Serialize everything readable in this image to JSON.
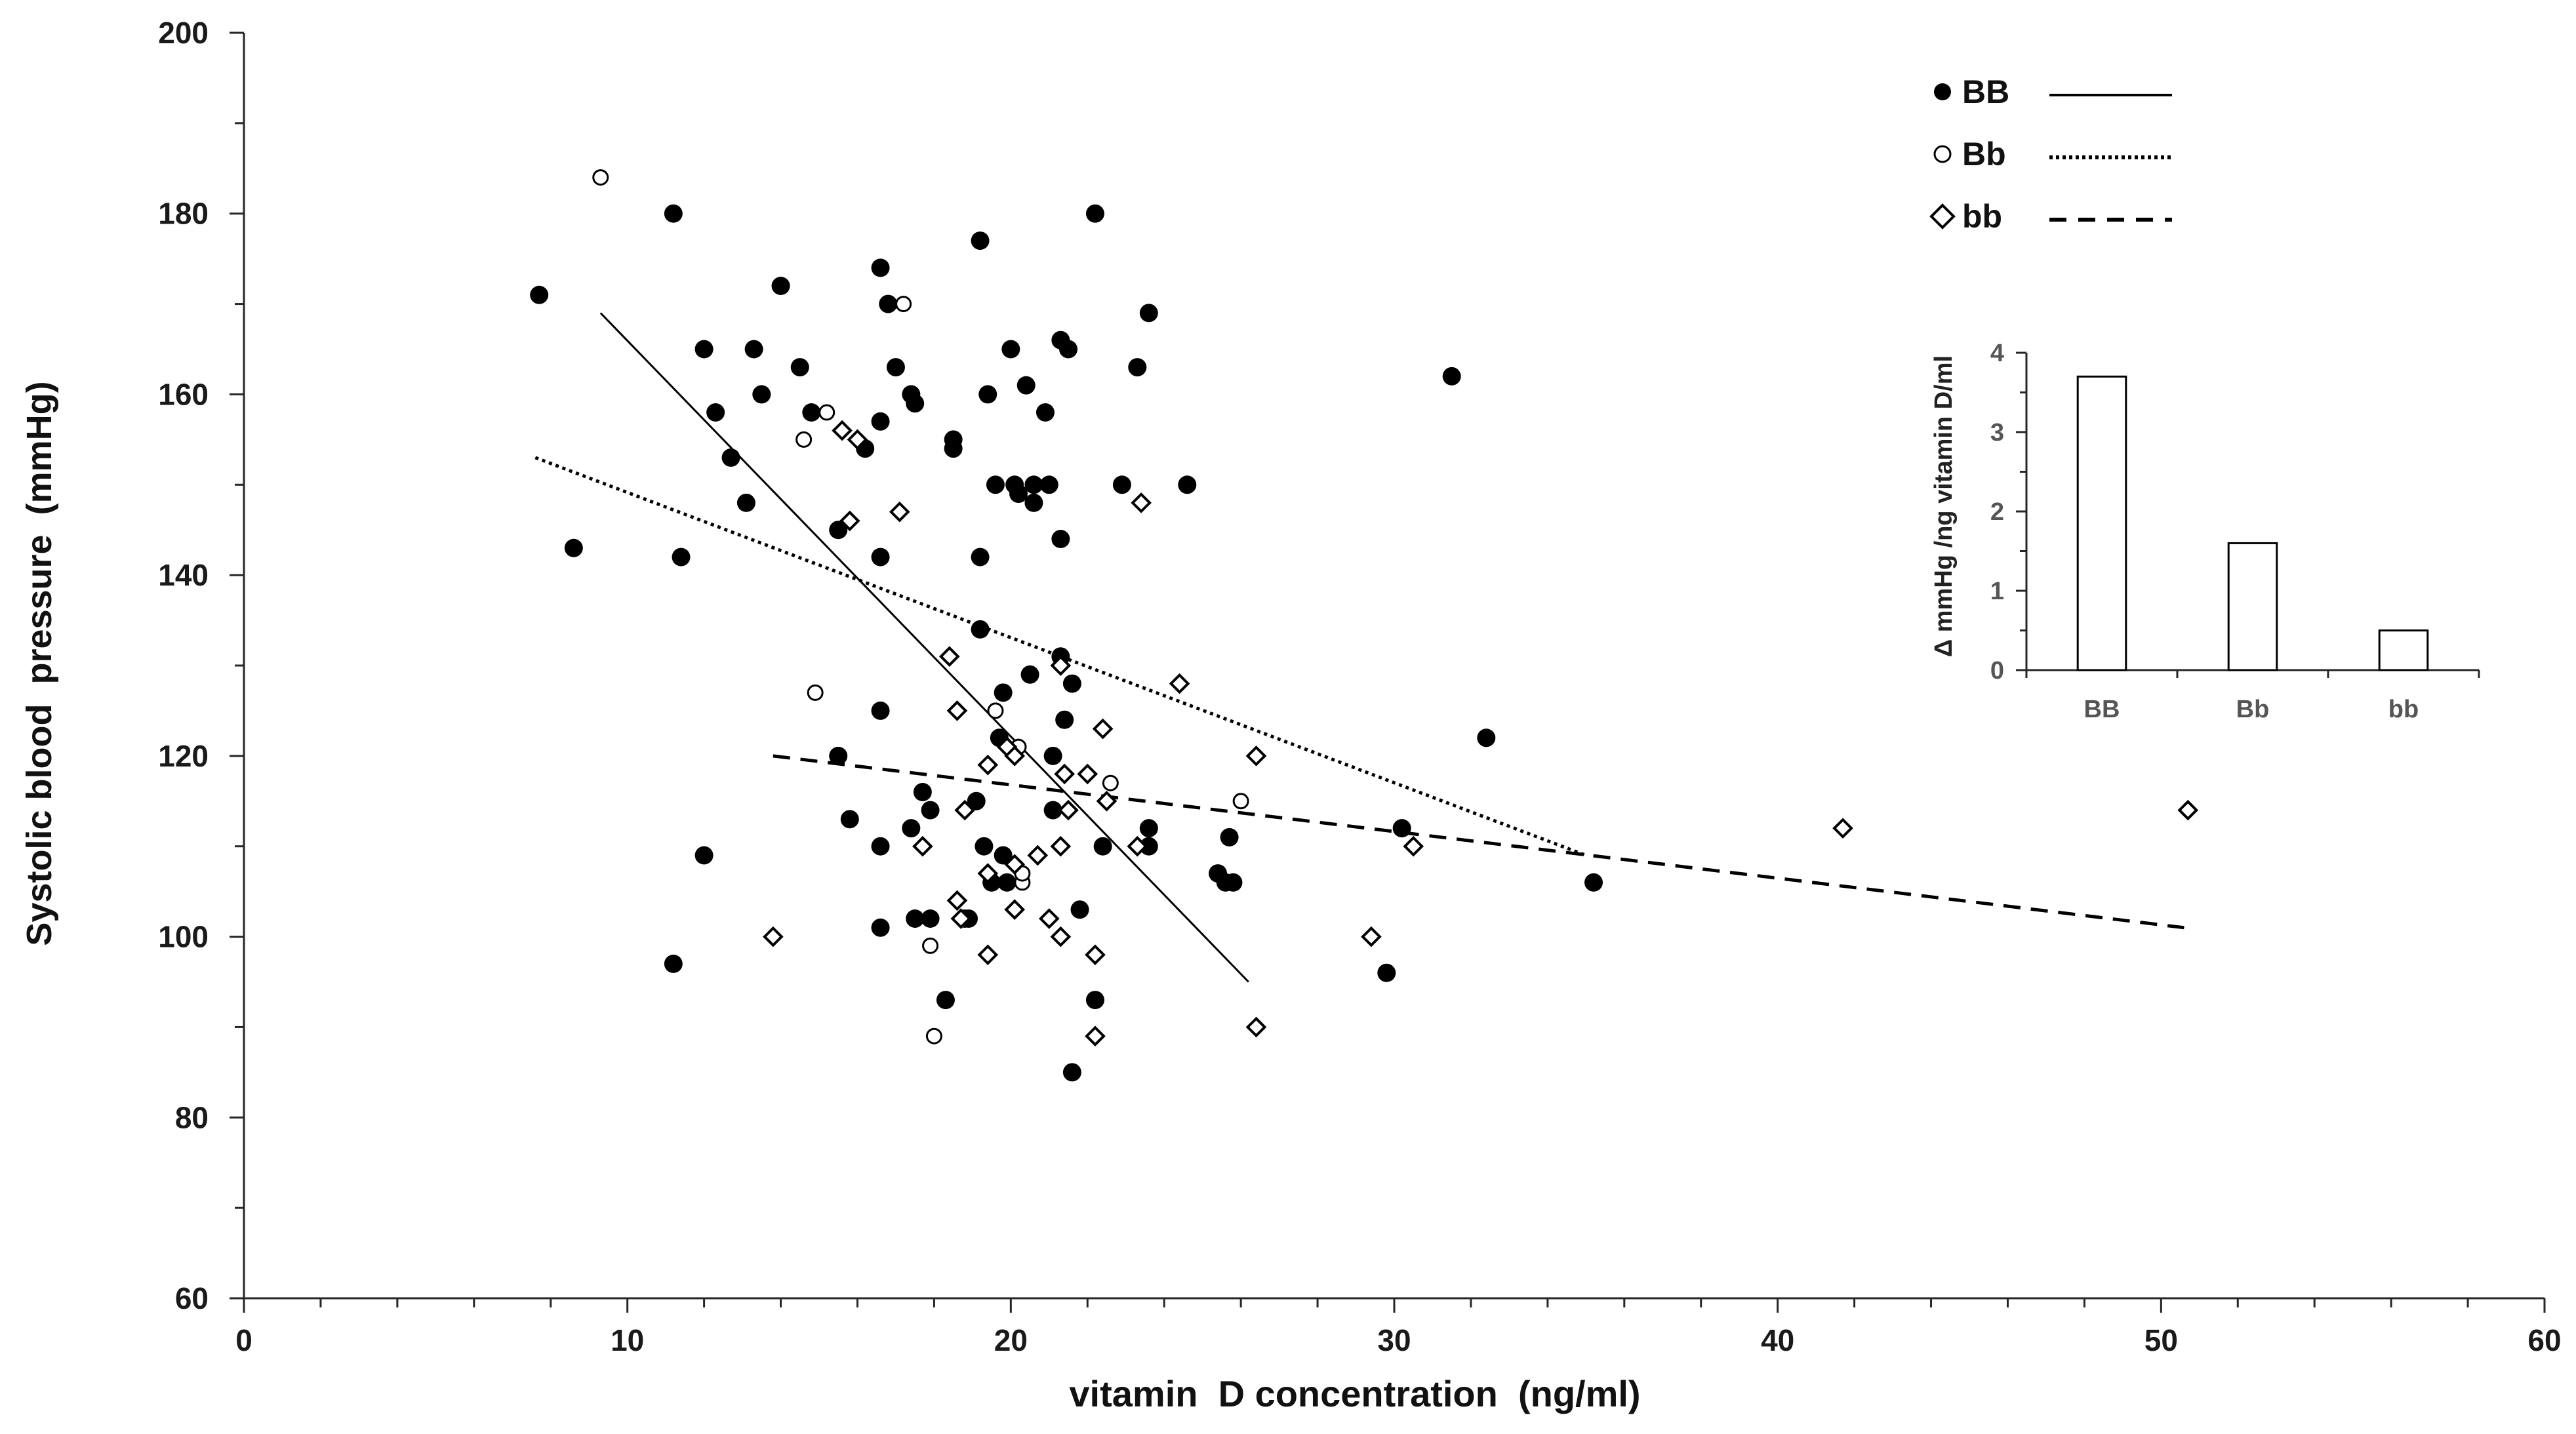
{
  "chart_data": [
    {
      "type": "scatter",
      "title": "",
      "xlabel": "vitamin  D concentration  (ng/ml)",
      "ylabel": "Systolic blood  pressure  (mmHg)",
      "xlim": [
        0,
        60
      ],
      "ylim": [
        60,
        200
      ],
      "x_ticks": [
        "0",
        "10",
        "20",
        "30",
        "40",
        "50",
        "60"
      ],
      "y_ticks": [
        "60",
        "80",
        "100",
        "120",
        "140",
        "160",
        "180",
        "200"
      ],
      "legend_position": "top-right",
      "series": [
        {
          "name": "BB",
          "marker": "filled-circle",
          "line_style": "solid",
          "points": [
            [
              7.7,
              171
            ],
            [
              8.6,
              143
            ],
            [
              11.2,
              180
            ],
            [
              11.4,
              142
            ],
            [
              11.2,
              97
            ],
            [
              12.0,
              109
            ],
            [
              12.0,
              165
            ],
            [
              12.3,
              158
            ],
            [
              12.7,
              153
            ],
            [
              13.1,
              148
            ],
            [
              13.3,
              165
            ],
            [
              13.5,
              160
            ],
            [
              14.0,
              172
            ],
            [
              14.5,
              163
            ],
            [
              14.8,
              158
            ],
            [
              16.2,
              154
            ],
            [
              15.5,
              145
            ],
            [
              15.5,
              120
            ],
            [
              15.8,
              113
            ],
            [
              16.6,
              174
            ],
            [
              16.8,
              170
            ],
            [
              17.0,
              163
            ],
            [
              16.6,
              157
            ],
            [
              16.6,
              142
            ],
            [
              16.6,
              125
            ],
            [
              16.6,
              110
            ],
            [
              16.6,
              101
            ],
            [
              17.4,
              160
            ],
            [
              17.5,
              159
            ],
            [
              17.4,
              112
            ],
            [
              17.5,
              102
            ],
            [
              17.7,
              116
            ],
            [
              17.9,
              114
            ],
            [
              17.9,
              102
            ],
            [
              18.3,
              93
            ],
            [
              18.5,
              154
            ],
            [
              18.5,
              155
            ],
            [
              18.8,
              102
            ],
            [
              18.9,
              102
            ],
            [
              19.1,
              115
            ],
            [
              19.2,
              177
            ],
            [
              19.2,
              142
            ],
            [
              19.2,
              134
            ],
            [
              19.3,
              110
            ],
            [
              19.4,
              160
            ],
            [
              19.5,
              106
            ],
            [
              19.6,
              150
            ],
            [
              19.7,
              122
            ],
            [
              19.8,
              127
            ],
            [
              19.8,
              109
            ],
            [
              19.9,
              106
            ],
            [
              20.0,
              165
            ],
            [
              20.1,
              150
            ],
            [
              20.2,
              149
            ],
            [
              20.4,
              161
            ],
            [
              20.5,
              129
            ],
            [
              20.6,
              150
            ],
            [
              20.6,
              148
            ],
            [
              20.9,
              158
            ],
            [
              21.0,
              150
            ],
            [
              21.1,
              120
            ],
            [
              21.1,
              114
            ],
            [
              21.3,
              166
            ],
            [
              21.3,
              131
            ],
            [
              21.3,
              144
            ],
            [
              21.4,
              124
            ],
            [
              21.5,
              165
            ],
            [
              21.6,
              128
            ],
            [
              21.6,
              85
            ],
            [
              21.8,
              103
            ],
            [
              22.2,
              180
            ],
            [
              22.2,
              93
            ],
            [
              22.4,
              110
            ],
            [
              22.9,
              150
            ],
            [
              23.3,
              163
            ],
            [
              23.6,
              169
            ],
            [
              23.6,
              112
            ],
            [
              23.6,
              110
            ],
            [
              24.6,
              150
            ],
            [
              25.4,
              107
            ],
            [
              25.6,
              106
            ],
            [
              25.8,
              106
            ],
            [
              25.7,
              111
            ],
            [
              29.8,
              96
            ],
            [
              30.2,
              112
            ],
            [
              31.5,
              162
            ],
            [
              32.4,
              122
            ],
            [
              35.2,
              106
            ]
          ],
          "regression_line": [
            [
              9.3,
              169
            ],
            [
              26.2,
              95
            ]
          ]
        },
        {
          "name": "Bb",
          "marker": "open-circle",
          "line_style": "dotted",
          "points": [
            [
              9.3,
              184
            ],
            [
              14.6,
              155
            ],
            [
              15.2,
              158
            ],
            [
              14.9,
              127
            ],
            [
              17.2,
              170
            ],
            [
              17.9,
              99
            ],
            [
              18.0,
              89
            ],
            [
              19.6,
              125
            ],
            [
              20.2,
              121
            ],
            [
              20.3,
              106
            ],
            [
              20.3,
              107
            ],
            [
              22.6,
              117
            ],
            [
              26.0,
              115
            ]
          ],
          "regression_line": [
            [
              7.6,
              153
            ],
            [
              35.0,
              109
            ]
          ]
        },
        {
          "name": "bb",
          "marker": "open-diamond",
          "line_style": "dashed",
          "points": [
            [
              13.8,
              100
            ],
            [
              15.6,
              156
            ],
            [
              15.8,
              146
            ],
            [
              16.0,
              155
            ],
            [
              17.1,
              147
            ],
            [
              17.7,
              110
            ],
            [
              18.4,
              131
            ],
            [
              18.6,
              125
            ],
            [
              18.6,
              104
            ],
            [
              18.7,
              102
            ],
            [
              18.8,
              114
            ],
            [
              19.4,
              119
            ],
            [
              19.4,
              107
            ],
            [
              19.4,
              98
            ],
            [
              19.9,
              121
            ],
            [
              20.1,
              120
            ],
            [
              20.1,
              108
            ],
            [
              20.1,
              103
            ],
            [
              20.7,
              109
            ],
            [
              21.0,
              102
            ],
            [
              21.3,
              130
            ],
            [
              21.3,
              110
            ],
            [
              21.3,
              100
            ],
            [
              21.4,
              118
            ],
            [
              21.5,
              114
            ],
            [
              22.0,
              118
            ],
            [
              22.2,
              98
            ],
            [
              22.2,
              89
            ],
            [
              22.4,
              123
            ],
            [
              22.5,
              115
            ],
            [
              23.3,
              110
            ],
            [
              23.4,
              148
            ],
            [
              24.4,
              128
            ],
            [
              26.4,
              120
            ],
            [
              26.4,
              90
            ],
            [
              29.4,
              100
            ],
            [
              30.5,
              110
            ],
            [
              41.7,
              112
            ],
            [
              50.7,
              114
            ]
          ],
          "regression_line": [
            [
              13.8,
              120
            ],
            [
              50.6,
              101
            ]
          ]
        }
      ]
    },
    {
      "type": "bar",
      "title": "",
      "ylabel": "Δ mmHg /ng vitamin D/ml",
      "categories": [
        "BB",
        "Bb",
        "bb"
      ],
      "values": [
        3.7,
        1.6,
        0.5
      ],
      "ylim": [
        0,
        4
      ],
      "y_ticks": [
        "0",
        "1",
        "2",
        "3",
        "4"
      ],
      "grid": false
    }
  ],
  "colors": {
    "ink": "#000000",
    "axis": "#262626",
    "inset_text": "#555555"
  }
}
